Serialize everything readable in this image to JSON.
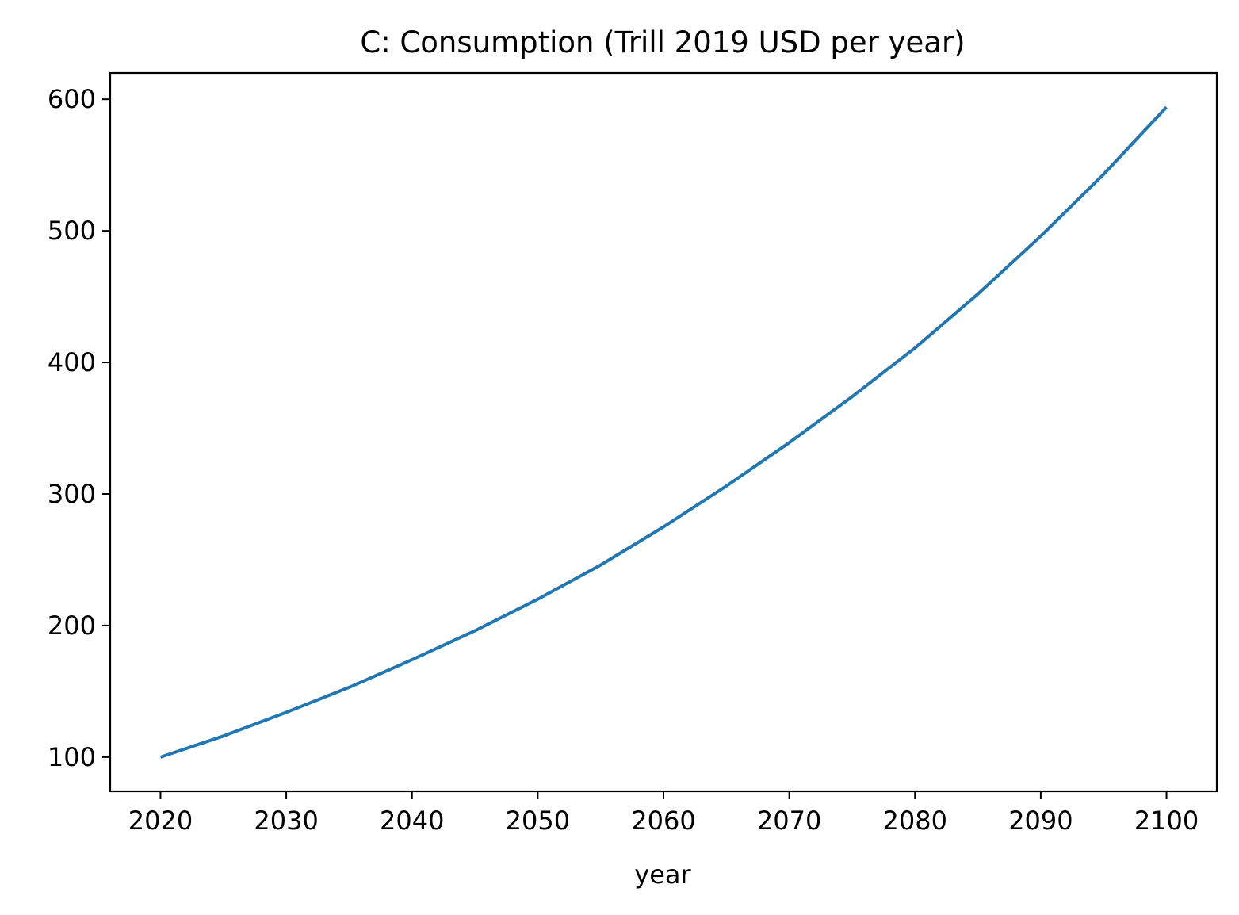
{
  "chart_data": {
    "type": "line",
    "title": "C: Consumption (Trill 2019 USD per year)",
    "xlabel": "year",
    "ylabel": "",
    "xlim": [
      2016,
      2104
    ],
    "ylim": [
      74,
      620
    ],
    "xticks": [
      2020,
      2030,
      2040,
      2050,
      2060,
      2070,
      2080,
      2090,
      2100
    ],
    "yticks": [
      100,
      200,
      300,
      400,
      500,
      600
    ],
    "grid": false,
    "legend": "none",
    "series": [
      {
        "color": "#1f77b4",
        "x": [
          2020,
          2025,
          2030,
          2035,
          2040,
          2045,
          2050,
          2055,
          2060,
          2065,
          2070,
          2075,
          2080,
          2085,
          2090,
          2095,
          2100
        ],
        "y": [
          100,
          116,
          134,
          153,
          174,
          196,
          220,
          246,
          275,
          306,
          339,
          374,
          411,
          452,
          496,
          543,
          594
        ]
      }
    ]
  }
}
